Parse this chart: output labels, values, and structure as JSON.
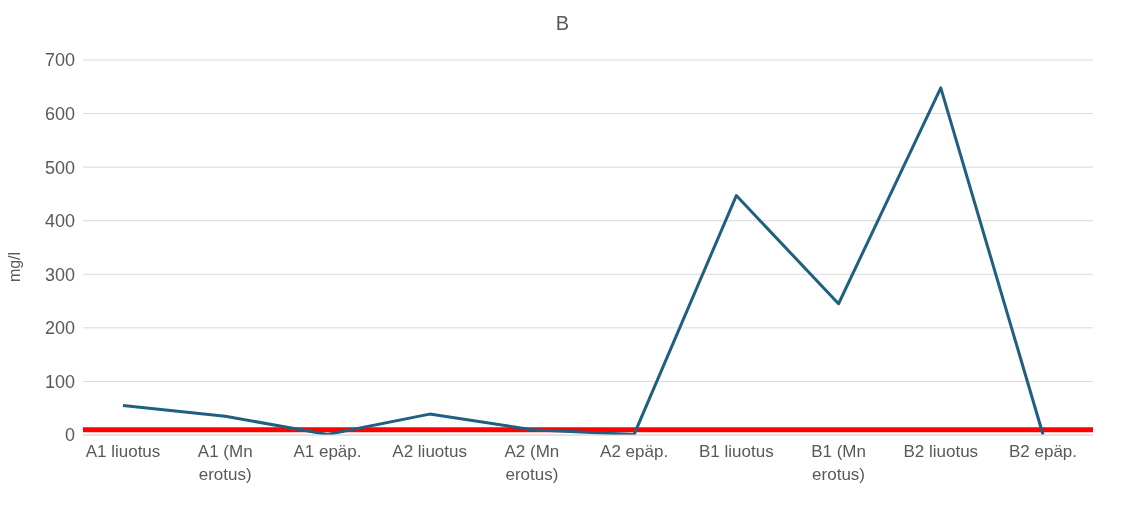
{
  "chart_data": {
    "type": "line",
    "title": "B",
    "ylabel": "mg/l",
    "categories": [
      "A1 liuotus",
      "A1 (Mn erotus)",
      "A1 epäp.",
      "A2 liuotus",
      "A2 (Mn erotus)",
      "A2 epäp.",
      "B1 liuotus",
      "B1  (Mn erotus)",
      "B2 liuotus",
      "B2 epäp."
    ],
    "series": [
      {
        "color": "#1f5f7f",
        "values": [
          55,
          35,
          1,
          39,
          10,
          1,
          447,
          245,
          648,
          1
        ]
      }
    ],
    "ylim": [
      0,
      700
    ],
    "yticks": [
      0,
      100,
      200,
      300,
      400,
      500,
      600,
      700
    ],
    "grid": "y",
    "marker": "none",
    "line_style": "solid",
    "ref_lines": [
      {
        "axis": "y",
        "value": 10,
        "color": "#ff0000"
      }
    ]
  }
}
